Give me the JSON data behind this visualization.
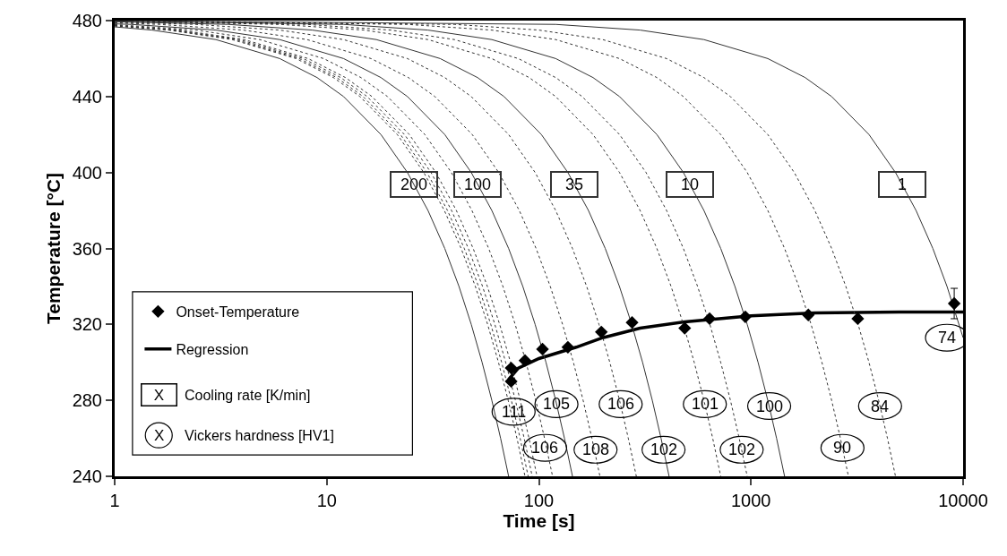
{
  "chart_data": {
    "type": "line",
    "xlabel": "Time [s]",
    "ylabel": "Temperature [°C]",
    "log": "x",
    "xlim": [
      1,
      10000
    ],
    "xticks": [
      1,
      10,
      100,
      1000,
      10000
    ],
    "ylim": [
      240,
      480
    ],
    "yticks": [
      240,
      280,
      320,
      360,
      400,
      440,
      480
    ],
    "grid": false,
    "legend": "bottom left",
    "series": [
      {
        "name": "Onset-Temperature",
        "type": "scatter",
        "marker": "diamond",
        "color": "#000000",
        "x": [
          74,
          74,
          86,
          104,
          137,
          197,
          275,
          487,
          638,
          940,
          1863,
          3187,
          9080
        ],
        "values": [
          297,
          290,
          301,
          307,
          308,
          316,
          321,
          318,
          323,
          324,
          325,
          323,
          331
        ],
        "errors": [
          null,
          null,
          null,
          null,
          null,
          null,
          null,
          null,
          null,
          null,
          null,
          null,
          8
        ]
      },
      {
        "name": "Regression",
        "line_style": "solid",
        "color": "#000000",
        "x": [
          72,
          80,
          100,
          150,
          200,
          300,
          500,
          1000,
          2000,
          5000,
          10000
        ],
        "values": [
          291,
          297,
          302,
          308,
          313,
          318,
          321.5,
          324.5,
          326,
          326.5,
          326.5
        ]
      },
      {
        "name": "200",
        "line_style": "solid",
        "color": "#333333",
        "x": [
          1,
          1.5,
          3,
          6,
          9,
          12,
          18,
          24,
          30,
          36,
          42,
          48,
          54,
          60,
          66,
          72
        ],
        "values": [
          476.7,
          475,
          470,
          460,
          450,
          440,
          420,
          400,
          380,
          360,
          340,
          320,
          300,
          280,
          260,
          240
        ]
      },
      {
        "line_style": "dotted",
        "color": "#333333",
        "x": [
          1,
          1.79,
          3.58,
          7.17,
          10.75,
          14.33,
          21.5,
          28.67,
          35.83,
          43,
          50.17,
          57.33,
          64.5,
          71.67,
          78.83,
          86
        ],
        "values": [
          477.2,
          475,
          470,
          460,
          450,
          440,
          420,
          400,
          380,
          360,
          340,
          320,
          300,
          280,
          260,
          240
        ]
      },
      {
        "line_style": "dotted",
        "color": "#333333",
        "x": [
          1,
          1.85,
          3.71,
          7.42,
          11.13,
          14.83,
          22.25,
          29.67,
          37.08,
          44.5,
          51.92,
          59.33,
          66.75,
          74.17,
          81.58,
          89
        ],
        "values": [
          477.3,
          475,
          470,
          460,
          450,
          440,
          420,
          400,
          380,
          360,
          340,
          320,
          300,
          280,
          260,
          240
        ]
      },
      {
        "line_style": "dotted",
        "color": "#333333",
        "x": [
          1,
          1.94,
          3.88,
          7.75,
          11.63,
          15.5,
          23.25,
          31,
          38.75,
          46.5,
          54.25,
          62,
          69.75,
          77.5,
          85.25,
          93
        ],
        "values": [
          477.4,
          475,
          470,
          460,
          450,
          440,
          420,
          400,
          380,
          360,
          340,
          320,
          300,
          280,
          260,
          240
        ]
      },
      {
        "line_style": "dotted",
        "color": "#333333",
        "x": [
          1,
          2.04,
          4.08,
          8.17,
          12.25,
          16.33,
          24.5,
          32.67,
          40.83,
          49,
          57.17,
          65.33,
          73.5,
          81.67,
          89.83,
          98
        ],
        "values": [
          477.6,
          475,
          470,
          460,
          450,
          440,
          420,
          400,
          380,
          360,
          340,
          320,
          300,
          280,
          260,
          240
        ]
      },
      {
        "line_style": "dotted",
        "color": "#333333",
        "x": [
          1,
          2.42,
          4.83,
          9.67,
          14.5,
          19.33,
          29,
          38.67,
          48.33,
          58,
          67.67,
          77.33,
          87,
          96.67,
          106.33,
          116
        ],
        "values": [
          477.9,
          475,
          470,
          460,
          450,
          440,
          420,
          400,
          380,
          360,
          340,
          320,
          300,
          280,
          260,
          240
        ]
      },
      {
        "name": "100",
        "line_style": "solid",
        "color": "#333333",
        "x": [
          1,
          1.2,
          3,
          6,
          12,
          18,
          24,
          36,
          48,
          60,
          72,
          84,
          96,
          108,
          120,
          132,
          144
        ],
        "values": [
          478.3,
          478,
          475,
          470,
          460,
          450,
          440,
          420,
          400,
          380,
          360,
          340,
          320,
          300,
          280,
          260,
          240
        ]
      },
      {
        "line_style": "dotted",
        "color": "#333333",
        "x": [
          1,
          1.62,
          4.04,
          8.08,
          16.17,
          24.25,
          32.33,
          48.5,
          64.67,
          80.83,
          97,
          113.17,
          129.33,
          145.5,
          161.67,
          177.83,
          194
        ],
        "values": [
          478.8,
          478,
          475,
          470,
          460,
          450,
          440,
          420,
          400,
          380,
          360,
          340,
          320,
          300,
          280,
          260,
          240
        ]
      },
      {
        "line_style": "dotted",
        "color": "#333333",
        "x": [
          1,
          2.4,
          6,
          12,
          24,
          36,
          48,
          72,
          96,
          120,
          144,
          168,
          192,
          216,
          240,
          264,
          288
        ],
        "values": [
          479.2,
          478,
          475,
          470,
          460,
          450,
          440,
          420,
          400,
          380,
          360,
          340,
          320,
          300,
          280,
          260,
          240
        ]
      },
      {
        "name": "35",
        "line_style": "solid",
        "color": "#333333",
        "x": [
          1,
          3.43,
          8.56,
          17.13,
          34.25,
          51.38,
          68.5,
          102.75,
          137,
          171.25,
          205.5,
          239.75,
          274,
          308.25,
          342.5,
          376.75,
          411
        ],
        "values": [
          479.4,
          478,
          475,
          470,
          460,
          450,
          440,
          420,
          400,
          380,
          360,
          340,
          320,
          300,
          280,
          260,
          240
        ]
      },
      {
        "line_style": "dotted",
        "color": "#333333",
        "x": [
          1,
          6,
          15,
          30,
          60,
          90,
          120,
          180,
          240,
          300,
          360,
          420,
          480,
          540,
          600,
          660,
          720
        ],
        "values": [
          479.7,
          478,
          475,
          470,
          460,
          450,
          440,
          420,
          400,
          380,
          360,
          340,
          320,
          300,
          280,
          260,
          240
        ]
      },
      {
        "line_style": "dotted",
        "color": "#333333",
        "x": [
          1,
          8,
          20,
          40,
          80,
          120,
          160,
          240,
          320,
          400,
          480,
          560,
          640,
          720,
          800,
          880,
          960
        ],
        "values": [
          479.8,
          478,
          475,
          470,
          460,
          450,
          440,
          420,
          400,
          380,
          360,
          340,
          320,
          300,
          280,
          260,
          240
        ]
      },
      {
        "name": "10",
        "line_style": "solid",
        "color": "#333333",
        "x": [
          1,
          12,
          30,
          60,
          120,
          180,
          240,
          360,
          480,
          600,
          720,
          840,
          960,
          1080,
          1200,
          1320,
          1440
        ],
        "values": [
          479.8,
          478,
          475,
          470,
          460,
          450,
          440,
          420,
          400,
          380,
          360,
          340,
          320,
          300,
          280,
          260,
          240
        ]
      },
      {
        "line_style": "dotted",
        "color": "#333333",
        "x": [
          1,
          24,
          60,
          120,
          240,
          360,
          480,
          720,
          960,
          1200,
          1440,
          1680,
          1920,
          2160,
          2400,
          2640,
          2880
        ],
        "values": [
          479.9,
          478,
          475,
          470,
          460,
          450,
          440,
          420,
          400,
          380,
          360,
          340,
          320,
          300,
          280,
          260,
          240
        ]
      },
      {
        "line_style": "dotted",
        "color": "#333333",
        "x": [
          1,
          40,
          100,
          200,
          400,
          600,
          800,
          1200,
          1600,
          2000,
          2400,
          2800,
          3200,
          3600,
          4000,
          4400,
          4800
        ],
        "values": [
          480,
          478,
          475,
          470,
          460,
          450,
          440,
          420,
          400,
          380,
          360,
          340,
          320,
          300,
          280,
          260,
          240
        ]
      },
      {
        "name": "1",
        "line_style": "solid",
        "color": "#333333",
        "x": [
          1,
          120,
          300,
          600,
          1200,
          1800,
          2400,
          3600,
          4800,
          6000,
          7200,
          8400,
          10000
        ],
        "values": [
          480,
          478,
          475,
          470,
          460,
          450,
          440,
          420,
          400,
          380,
          360,
          340,
          313
        ]
      }
    ],
    "annotations": [
      {
        "text": "111",
        "x": 76,
        "y": 274
      },
      {
        "text": "105",
        "x": 121,
        "y": 278
      },
      {
        "text": "106",
        "x": 243,
        "y": 278
      },
      {
        "text": "101",
        "x": 606,
        "y": 278
      },
      {
        "text": "100",
        "x": 1218,
        "y": 277
      },
      {
        "text": "84",
        "x": 4060,
        "y": 277
      },
      {
        "text": "74",
        "x": 10000,
        "y": 313
      },
      {
        "text": "106",
        "x": 107,
        "y": 255
      },
      {
        "text": "108",
        "x": 185,
        "y": 254
      },
      {
        "text": "102",
        "x": 387,
        "y": 254
      },
      {
        "text": "102",
        "x": 904,
        "y": 254
      },
      {
        "text": "90",
        "x": 2700,
        "y": 255
      },
      "X",
      "Cooling rate [K/min]",
      "X",
      "Vickers hardness [HV1]"
    ]
  }
}
